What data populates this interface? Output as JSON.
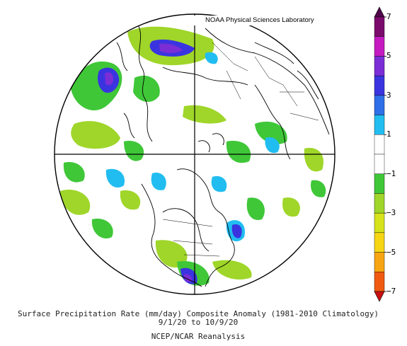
{
  "header": {
    "lab_name": "NOAA Physical Sciences Laboratory"
  },
  "caption": {
    "line1": "Surface Precipitation Rate (mm/day) Composite Anomaly (1981-2010 Climatology)",
    "line2": "9/1/20  to 10/9/20",
    "line3": "NCEP/NCAR Reanalysis"
  },
  "colorbar": {
    "labels": [
      "7",
      "5",
      "3",
      "1",
      "−1",
      "−3",
      "−5",
      "−7"
    ],
    "label_values": [
      7,
      5,
      3,
      1,
      -1,
      -3,
      -5,
      -7
    ],
    "bins": [
      {
        "from": 6,
        "to": 7,
        "color": "#7a0a6b"
      },
      {
        "from": 5,
        "to": 6,
        "color": "#c41ac0"
      },
      {
        "from": 4,
        "to": 5,
        "color": "#7b2dd6"
      },
      {
        "from": 3,
        "to": 4,
        "color": "#3a34e0"
      },
      {
        "from": 2,
        "to": 3,
        "color": "#2f6fe8"
      },
      {
        "from": 1,
        "to": 2,
        "color": "#21bdf1"
      },
      {
        "from": 0,
        "to": 1,
        "color": "#ffffff"
      },
      {
        "from": -1,
        "to": 0,
        "color": "#ffffff"
      },
      {
        "from": -2,
        "to": -1,
        "color": "#3fc738"
      },
      {
        "from": -3,
        "to": -2,
        "color": "#9fd629"
      },
      {
        "from": -4,
        "to": -3,
        "color": "#d6e31b"
      },
      {
        "from": -5,
        "to": -4,
        "color": "#f6d515"
      },
      {
        "from": -6,
        "to": -5,
        "color": "#f7a512"
      },
      {
        "from": -7,
        "to": -6,
        "color": "#f05a10"
      }
    ],
    "top_color": "#50054a",
    "bottom_color": "#c81010"
  },
  "map": {
    "projection": "north polar stereographic",
    "ocean_color": "#ffffff",
    "coast_color": "#000000"
  }
}
